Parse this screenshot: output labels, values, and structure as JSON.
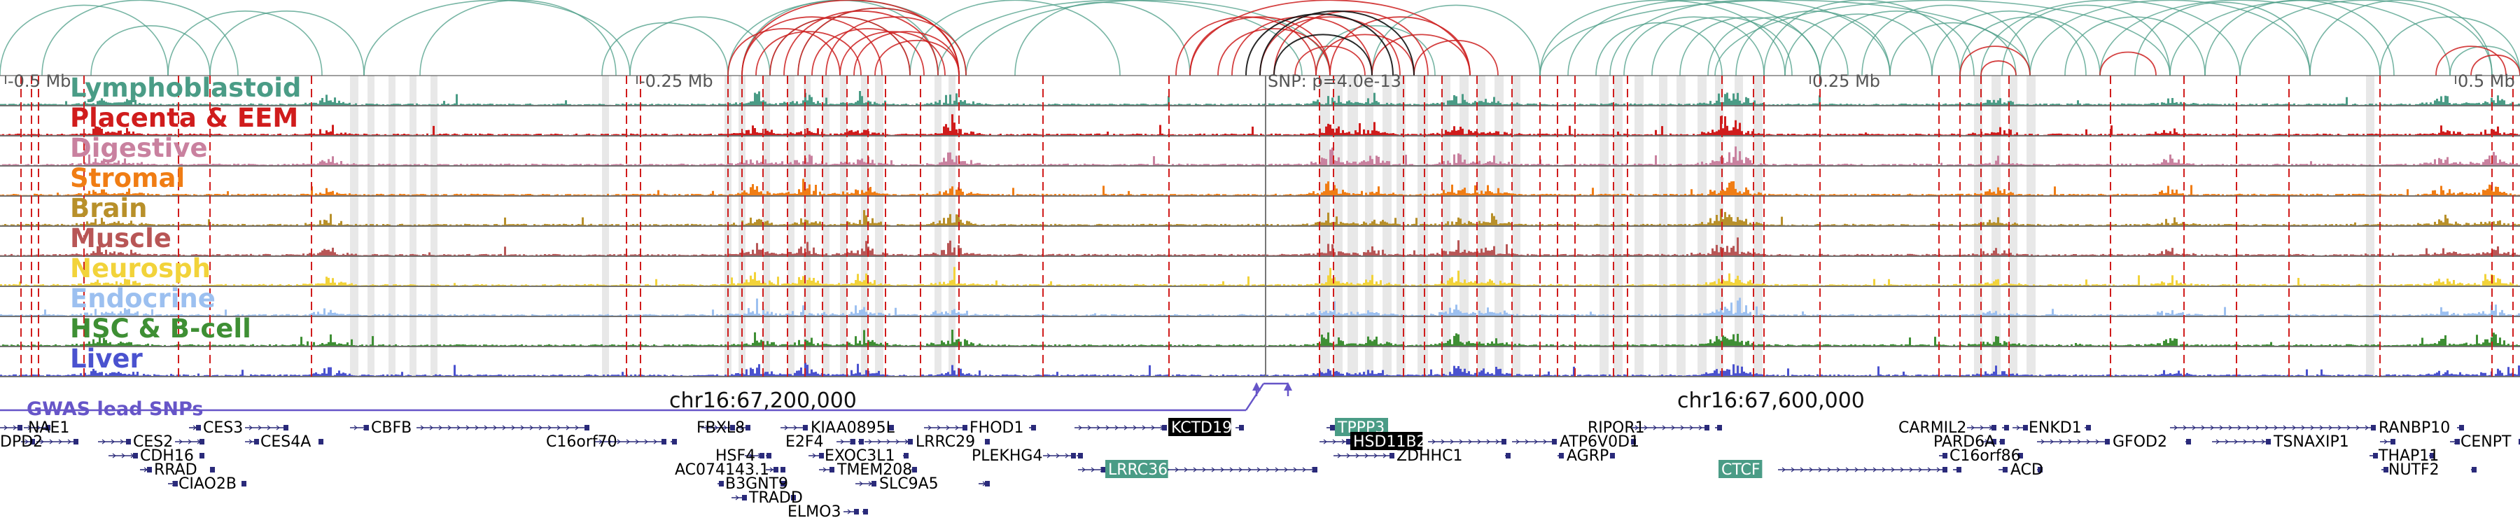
{
  "axis": {
    "ticks": [
      "-0.5 Mb",
      "-0.25 Mb",
      "SNP: p=4.0e-13",
      "0.25 Mb",
      "0.5 Mb"
    ],
    "chrom_labels": [
      "chr16:67,200,000",
      "chr16:67,600,000"
    ]
  },
  "tracks": [
    {
      "name": "Lymphoblastoid",
      "color": "#4a9c86"
    },
    {
      "name": "Placenta & EEM",
      "color": "#d01c1c"
    },
    {
      "name": "Digestive",
      "color": "#c9819f"
    },
    {
      "name": "Stromal",
      "color": "#f07d14"
    },
    {
      "name": "Brain",
      "color": "#b8902a"
    },
    {
      "name": "Muscle",
      "color": "#b85656"
    },
    {
      "name": "Neurosph",
      "color": "#f2d33a"
    },
    {
      "name": "Endocrine",
      "color": "#9cc0f0"
    },
    {
      "name": "HSC & B-cell",
      "color": "#3e8f34"
    },
    {
      "name": "Liver",
      "color": "#4a52cf"
    }
  ],
  "gwas_label": "GWAS lead SNPs",
  "genes": [
    {
      "name": "NAE1",
      "style": "plain"
    },
    {
      "name": "DPD2",
      "style": "plain"
    },
    {
      "name": "CES2",
      "style": "plain"
    },
    {
      "name": "CES3",
      "style": "plain"
    },
    {
      "name": "CES4A",
      "style": "plain"
    },
    {
      "name": "CDH16",
      "style": "plain"
    },
    {
      "name": "RRAD",
      "style": "plain"
    },
    {
      "name": "CIAO2B",
      "style": "plain"
    },
    {
      "name": "CBFB",
      "style": "plain"
    },
    {
      "name": "C16orf70",
      "style": "plain"
    },
    {
      "name": "FBXL8",
      "style": "plain"
    },
    {
      "name": "HSF4",
      "style": "plain"
    },
    {
      "name": "AC074143.1",
      "style": "plain"
    },
    {
      "name": "B3GNT9",
      "style": "plain"
    },
    {
      "name": "TRADD",
      "style": "plain"
    },
    {
      "name": "ELMO3",
      "style": "plain"
    },
    {
      "name": "KIAA0895L",
      "style": "plain"
    },
    {
      "name": "E2F4",
      "style": "plain"
    },
    {
      "name": "EXOC3L1",
      "style": "plain"
    },
    {
      "name": "TMEM208",
      "style": "plain"
    },
    {
      "name": "SLC9A5",
      "style": "plain"
    },
    {
      "name": "LRRC29",
      "style": "plain"
    },
    {
      "name": "FHOD1",
      "style": "plain"
    },
    {
      "name": "PLEKHG4",
      "style": "plain"
    },
    {
      "name": "LRRC36",
      "style": "teal"
    },
    {
      "name": "KCTD19",
      "style": "black"
    },
    {
      "name": "TPPP3",
      "style": "teal"
    },
    {
      "name": "HSD11B2",
      "style": "black"
    },
    {
      "name": "ZDHHC1",
      "style": "plain"
    },
    {
      "name": "RIPOR1",
      "style": "plain"
    },
    {
      "name": "ATP6V0D1",
      "style": "plain"
    },
    {
      "name": "AGRP",
      "style": "plain"
    },
    {
      "name": "CTCF",
      "style": "teal"
    },
    {
      "name": "CARMIL2",
      "style": "plain"
    },
    {
      "name": "PARD6A",
      "style": "plain"
    },
    {
      "name": "C16orf86",
      "style": "plain"
    },
    {
      "name": "ACD",
      "style": "plain"
    },
    {
      "name": "ENKD1",
      "style": "plain"
    },
    {
      "name": "GFOD2",
      "style": "plain"
    },
    {
      "name": "RANBP10",
      "style": "plain"
    },
    {
      "name": "TSNAXIP1",
      "style": "plain"
    },
    {
      "name": "THAP11",
      "style": "plain"
    },
    {
      "name": "NUTF2",
      "style": "plain"
    },
    {
      "name": "CENPT",
      "style": "plain"
    }
  ],
  "colors": {
    "arc_teal": "#4a9c86",
    "arc_red": "#cc1f1f",
    "arc_black": "#111111",
    "gwas": "#6655c8",
    "gene": "#2a2a7a",
    "teal_box": "#4a9c86",
    "highlight": "#e0e0e0",
    "dashed": "#d01c1c"
  }
}
